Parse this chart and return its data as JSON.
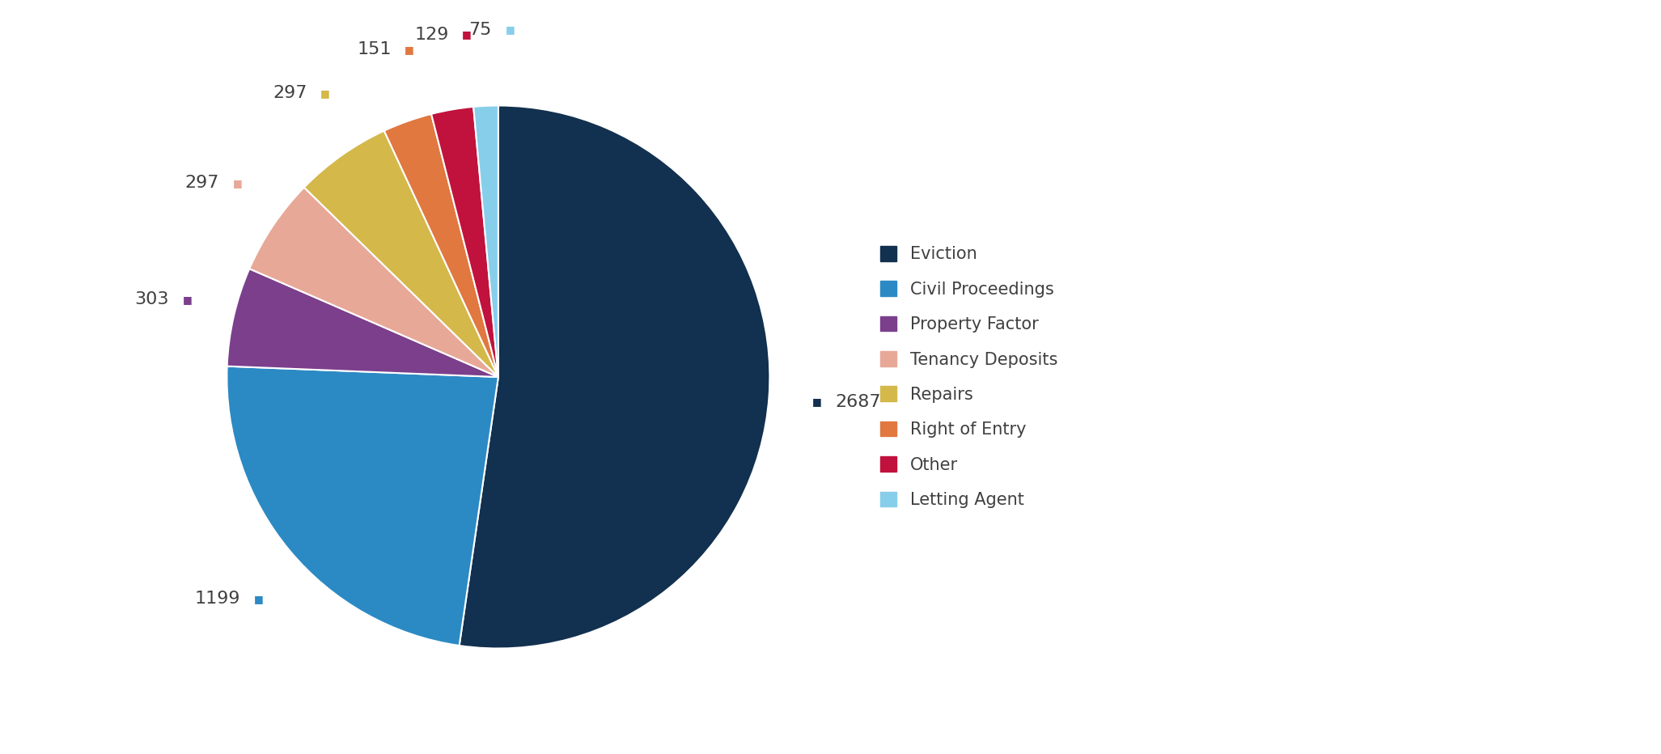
{
  "labels": [
    "Eviction",
    "Civil Proceedings",
    "Property Factor",
    "Tenancy Deposits",
    "Repairs",
    "Right of Entry",
    "Other",
    "Letting Agent"
  ],
  "values": [
    2687,
    1199,
    303,
    297,
    297,
    151,
    129,
    75
  ],
  "colors": [
    "#12304f",
    "#2b8ac4",
    "#7b3f8c",
    "#e8a898",
    "#d4b84a",
    "#e07840",
    "#c0123c",
    "#87ceeb"
  ],
  "label_texts": [
    "2687",
    "1199",
    "303",
    "297",
    "297",
    "151",
    "129",
    "75"
  ],
  "legend_labels": [
    "Eviction",
    "Civil Proceedings",
    "Property Factor",
    "Tenancy Deposits",
    "Repairs",
    "Right of Entry",
    "Other",
    "Letting Agent"
  ],
  "background_color": "#ffffff",
  "text_color": "#404040",
  "legend_fontsize": 15,
  "label_fontsize": 16
}
